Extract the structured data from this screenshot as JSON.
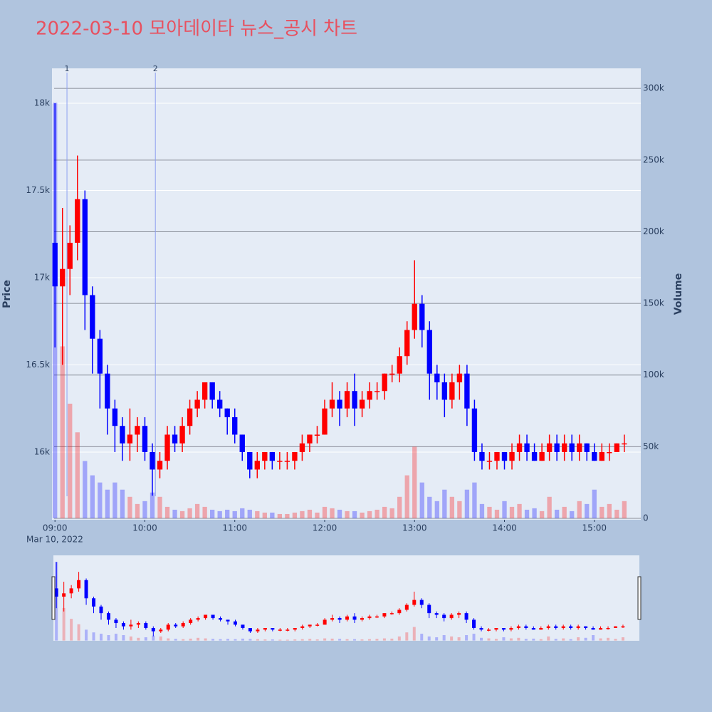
{
  "chart_data": {
    "type": "candlestick",
    "title": "2022-03-10 모아데이타 뉴스_공시 차트",
    "y_label": "Price",
    "y2_label": "Volume",
    "x_sublabel": "Mar 10, 2022",
    "x": [
      "09:00",
      "09:05",
      "09:10",
      "09:15",
      "09:20",
      "09:25",
      "09:30",
      "09:35",
      "09:40",
      "09:45",
      "09:50",
      "09:55",
      "10:00",
      "10:05",
      "10:10",
      "10:15",
      "10:20",
      "10:25",
      "10:30",
      "10:35",
      "10:40",
      "10:45",
      "10:50",
      "10:55",
      "11:00",
      "11:05",
      "11:10",
      "11:15",
      "11:20",
      "11:25",
      "11:30",
      "11:35",
      "11:40",
      "11:45",
      "11:50",
      "11:55",
      "12:00",
      "12:05",
      "12:10",
      "12:15",
      "12:20",
      "12:25",
      "12:30",
      "12:35",
      "12:40",
      "12:45",
      "12:50",
      "12:55",
      "13:00",
      "13:05",
      "13:10",
      "13:15",
      "13:20",
      "13:25",
      "13:30",
      "13:35",
      "13:40",
      "13:45",
      "13:50",
      "13:55",
      "14:00",
      "14:05",
      "14:10",
      "14:15",
      "14:20",
      "14:25",
      "14:30",
      "14:35",
      "14:40",
      "14:45",
      "14:50",
      "14:55",
      "15:00",
      "15:05",
      "15:10",
      "15:15",
      "15:20"
    ],
    "open": [
      17200,
      16950,
      17050,
      17200,
      17450,
      16900,
      16650,
      16450,
      16250,
      16150,
      16050,
      16100,
      16150,
      16000,
      15900,
      15950,
      16100,
      16050,
      16150,
      16250,
      16300,
      16400,
      16300,
      16250,
      16200,
      16100,
      16000,
      15900,
      15950,
      16000,
      15950,
      15950,
      15950,
      16000,
      16050,
      16100,
      16100,
      16250,
      16300,
      16250,
      16350,
      16250,
      16300,
      16350,
      16350,
      16450,
      16450,
      16550,
      16700,
      16850,
      16700,
      16450,
      16400,
      16300,
      16400,
      16450,
      16250,
      16000,
      15950,
      15950,
      16000,
      15950,
      16000,
      16050,
      16000,
      15950,
      16000,
      16050,
      16000,
      16050,
      16000,
      16050,
      16000,
      15950,
      16000,
      16000,
      16050
    ],
    "high": [
      18000,
      17400,
      17300,
      17700,
      17500,
      16950,
      16700,
      16500,
      16300,
      16200,
      16250,
      16200,
      16200,
      16050,
      16000,
      16150,
      16150,
      16200,
      16300,
      16350,
      16400,
      16400,
      16350,
      16250,
      16250,
      16100,
      16000,
      16000,
      16000,
      16000,
      16000,
      16000,
      16000,
      16100,
      16100,
      16150,
      16300,
      16400,
      16350,
      16400,
      16450,
      16350,
      16400,
      16400,
      16450,
      16500,
      16600,
      16750,
      17100,
      16900,
      16750,
      16500,
      16450,
      16450,
      16500,
      16500,
      16300,
      16050,
      16000,
      16000,
      16000,
      16050,
      16100,
      16100,
      16050,
      16050,
      16100,
      16100,
      16100,
      16100,
      16100,
      16050,
      16050,
      16050,
      16050,
      16050,
      16100
    ],
    "low": [
      16600,
      16500,
      16900,
      17100,
      16700,
      16450,
      16250,
      16100,
      16000,
      15950,
      15950,
      16000,
      15950,
      15750,
      15850,
      15900,
      16000,
      16000,
      16100,
      16200,
      16250,
      16250,
      16200,
      16100,
      16050,
      15950,
      15850,
      15850,
      15900,
      15900,
      15900,
      15900,
      15900,
      15950,
      16000,
      16050,
      16100,
      16200,
      16150,
      16200,
      16150,
      16200,
      16250,
      16300,
      16300,
      16400,
      16400,
      16500,
      16650,
      16600,
      16300,
      16300,
      16200,
      16250,
      16300,
      16150,
      15950,
      15900,
      15900,
      15900,
      15900,
      15900,
      15950,
      15950,
      15950,
      15950,
      15950,
      15950,
      15950,
      15950,
      15950,
      15950,
      15950,
      15950,
      15950,
      16000,
      16000
    ],
    "close": [
      16950,
      17050,
      17200,
      17450,
      16900,
      16650,
      16450,
      16250,
      16150,
      16050,
      16100,
      16150,
      16000,
      15900,
      15950,
      16100,
      16050,
      16150,
      16250,
      16300,
      16400,
      16300,
      16250,
      16200,
      16100,
      16000,
      15900,
      15950,
      16000,
      15950,
      15950,
      15950,
      16000,
      16050,
      16100,
      16100,
      16250,
      16300,
      16250,
      16350,
      16250,
      16300,
      16350,
      16350,
      16450,
      16450,
      16550,
      16700,
      16850,
      16700,
      16450,
      16400,
      16300,
      16400,
      16450,
      16250,
      16000,
      15950,
      15950,
      16000,
      15950,
      16000,
      16050,
      16000,
      15950,
      16000,
      16050,
      16000,
      16050,
      16000,
      16050,
      16000,
      15950,
      16000,
      16000,
      16050,
      16050
    ],
    "volume": [
      290000,
      120000,
      80000,
      60000,
      40000,
      30000,
      25000,
      20000,
      25000,
      20000,
      15000,
      10000,
      12000,
      18000,
      15000,
      8000,
      6000,
      5000,
      7000,
      10000,
      8000,
      6000,
      5000,
      6000,
      5000,
      7000,
      6000,
      5000,
      4000,
      4000,
      3000,
      3000,
      4000,
      5000,
      6000,
      4000,
      8000,
      7000,
      6000,
      5000,
      5000,
      4000,
      5000,
      6000,
      8000,
      7000,
      15000,
      30000,
      50000,
      25000,
      15000,
      12000,
      20000,
      15000,
      12000,
      20000,
      25000,
      10000,
      8000,
      6000,
      12000,
      8000,
      10000,
      6000,
      7000,
      5000,
      15000,
      6000,
      8000,
      5000,
      12000,
      10000,
      20000,
      8000,
      10000,
      6000,
      12000
    ],
    "increasing_color": "#ff0000",
    "decreasing_color": "#0000ff",
    "xlim": [
      "08:58",
      "15:31"
    ],
    "xticks": [
      "09:00",
      "10:00",
      "11:00",
      "12:00",
      "13:00",
      "14:00",
      "15:00"
    ],
    "ylim": [
      15612,
      18200
    ],
    "yticks": [
      {
        "value": 16000,
        "label": "16k"
      },
      {
        "value": 16500,
        "label": "16.5k"
      },
      {
        "value": 17000,
        "label": "17k"
      },
      {
        "value": 17500,
        "label": "17.5k"
      },
      {
        "value": 18000,
        "label": "18k"
      }
    ],
    "y2lim": [
      -1000,
      314000
    ],
    "y2ticks": [
      0,
      {
        "value": 50000,
        "label": "50k"
      },
      {
        "value": 100000,
        "label": "100k"
      },
      {
        "value": 150000,
        "label": "150k"
      },
      {
        "value": 200000,
        "label": "200k"
      },
      {
        "value": 250000,
        "label": "250k"
      },
      {
        "value": 300000,
        "label": "300k"
      }
    ],
    "annotations": [
      {
        "x": "09:08",
        "text": "1"
      },
      {
        "x": "10:07",
        "text": "2"
      }
    ],
    "grid": true
  }
}
